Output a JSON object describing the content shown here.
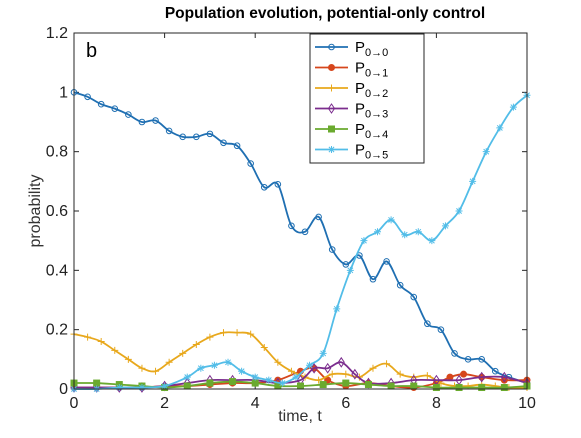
{
  "chart_data": {
    "type": "line",
    "title": "Population evolution, potential-only control",
    "panel_label": "b",
    "xlabel": "time, t",
    "ylabel": "probability",
    "xlim": [
      0,
      10
    ],
    "ylim": [
      0,
      1.2
    ],
    "xticks": [
      0,
      2,
      4,
      6,
      8,
      10
    ],
    "yticks": [
      0,
      0.2,
      0.4,
      0.6,
      0.8,
      1,
      1.2
    ],
    "legend_position": "top-center",
    "series": [
      {
        "name": "P",
        "name_sub": "0→0",
        "color": "#1f6fb2",
        "marker": "circle",
        "x": [
          0,
          0.3,
          0.6,
          0.9,
          1.2,
          1.5,
          1.8,
          2.1,
          2.4,
          2.7,
          3.0,
          3.3,
          3.6,
          3.9,
          4.2,
          4.5,
          4.8,
          5.1,
          5.4,
          5.7,
          6.0,
          6.3,
          6.6,
          6.9,
          7.2,
          7.5,
          7.8,
          8.1,
          8.4,
          8.7,
          9.0,
          9.3,
          9.6,
          10.0
        ],
        "y": [
          1.0,
          0.985,
          0.96,
          0.945,
          0.925,
          0.9,
          0.905,
          0.87,
          0.85,
          0.85,
          0.86,
          0.83,
          0.82,
          0.76,
          0.68,
          0.69,
          0.55,
          0.53,
          0.58,
          0.47,
          0.42,
          0.45,
          0.37,
          0.43,
          0.35,
          0.31,
          0.22,
          0.2,
          0.12,
          0.1,
          0.1,
          0.06,
          0.04,
          0.02
        ]
      },
      {
        "name": "P",
        "name_sub": "0→1",
        "color": "#d6461c",
        "marker": "dot",
        "x": [
          0,
          0.5,
          1.0,
          1.5,
          2.0,
          2.5,
          3.0,
          3.5,
          4.0,
          4.5,
          5.0,
          5.3,
          5.6,
          6.0,
          6.5,
          7.0,
          7.5,
          8.0,
          8.3,
          8.6,
          9.0,
          9.5,
          10.0
        ],
        "y": [
          0.005,
          0.005,
          0.005,
          0.005,
          0.01,
          0.01,
          0.015,
          0.02,
          0.02,
          0.03,
          0.06,
          0.07,
          0.03,
          0.01,
          0.02,
          0.01,
          0.005,
          0.02,
          0.04,
          0.05,
          0.04,
          0.03,
          0.03
        ]
      },
      {
        "name": "P",
        "name_sub": "0→2",
        "color": "#e8a81c",
        "marker": "plus",
        "x": [
          0,
          0.3,
          0.6,
          0.9,
          1.2,
          1.5,
          1.8,
          2.1,
          2.4,
          2.7,
          3.0,
          3.3,
          3.6,
          3.9,
          4.2,
          4.5,
          4.8,
          5.1,
          5.4,
          5.7,
          6.0,
          6.3,
          6.6,
          6.9,
          7.2,
          7.5,
          7.8,
          8.1,
          8.4,
          8.7,
          9.0,
          9.3,
          9.6,
          10.0
        ],
        "y": [
          0.185,
          0.175,
          0.16,
          0.13,
          0.1,
          0.07,
          0.06,
          0.09,
          0.12,
          0.15,
          0.175,
          0.19,
          0.19,
          0.185,
          0.14,
          0.09,
          0.06,
          0.04,
          0.03,
          0.05,
          0.05,
          0.04,
          0.07,
          0.085,
          0.05,
          0.04,
          0.045,
          0.02,
          0.01,
          0.01,
          0.015,
          0.01,
          0.005,
          0.005
        ]
      },
      {
        "name": "P",
        "name_sub": "0→3",
        "color": "#7b2d8e",
        "marker": "diamond",
        "x": [
          0,
          0.5,
          1.0,
          1.5,
          2.0,
          2.5,
          3.0,
          3.5,
          4.0,
          4.5,
          5.0,
          5.3,
          5.6,
          5.9,
          6.2,
          6.5,
          7.0,
          7.5,
          8.0,
          8.5,
          9.0,
          9.5,
          10.0
        ],
        "y": [
          0.005,
          0.005,
          0.005,
          0.005,
          0.01,
          0.02,
          0.03,
          0.03,
          0.03,
          0.02,
          0.03,
          0.07,
          0.07,
          0.09,
          0.05,
          0.02,
          0.02,
          0.03,
          0.03,
          0.03,
          0.04,
          0.04,
          0.02
        ]
      },
      {
        "name": "P",
        "name_sub": "0→4",
        "color": "#6aaa2e",
        "marker": "square",
        "x": [
          0,
          0.5,
          1.0,
          1.5,
          2.0,
          2.5,
          3.0,
          3.5,
          4.0,
          4.5,
          5.0,
          5.5,
          6.0,
          6.5,
          7.0,
          7.5,
          8.0,
          8.5,
          9.0,
          9.5,
          10.0
        ],
        "y": [
          0.02,
          0.02,
          0.015,
          0.01,
          0.005,
          0.01,
          0.02,
          0.025,
          0.02,
          0.01,
          0.01,
          0.015,
          0.02,
          0.015,
          0.01,
          0.01,
          0.005,
          0.005,
          0.005,
          0.005,
          0.01
        ]
      },
      {
        "name": "P",
        "name_sub": "0→5",
        "color": "#52bde8",
        "marker": "star",
        "x": [
          0,
          0.5,
          1.0,
          1.5,
          2.0,
          2.5,
          2.8,
          3.1,
          3.4,
          3.7,
          4.0,
          4.3,
          4.6,
          4.9,
          5.2,
          5.5,
          5.8,
          6.1,
          6.4,
          6.7,
          7.0,
          7.3,
          7.6,
          7.9,
          8.2,
          8.5,
          8.8,
          9.1,
          9.4,
          9.7,
          10.0
        ],
        "y": [
          0.0,
          0.0,
          0.005,
          0.005,
          0.01,
          0.04,
          0.07,
          0.08,
          0.09,
          0.06,
          0.04,
          0.03,
          0.02,
          0.04,
          0.08,
          0.12,
          0.27,
          0.4,
          0.5,
          0.53,
          0.57,
          0.52,
          0.53,
          0.5,
          0.55,
          0.6,
          0.7,
          0.8,
          0.88,
          0.95,
          0.99
        ]
      }
    ]
  }
}
